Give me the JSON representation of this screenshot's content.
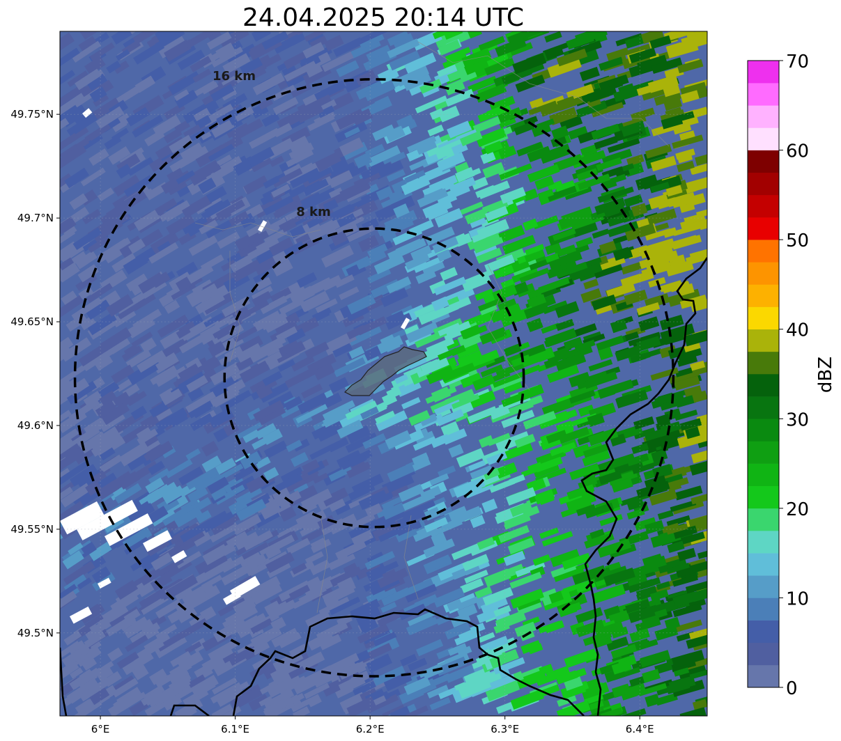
{
  "title": "24.04.2025 20:14 UTC",
  "map": {
    "lon_range": [
      5.97,
      6.45
    ],
    "lat_range": [
      49.46,
      49.79
    ],
    "x_ticks": [
      {
        "value": 6.0,
        "label": "6°E"
      },
      {
        "value": 6.1,
        "label": "6.1°E"
      },
      {
        "value": 6.2,
        "label": "6.2°E"
      },
      {
        "value": 6.3,
        "label": "6.3°E"
      },
      {
        "value": 6.4,
        "label": "6.4°E"
      }
    ],
    "y_ticks": [
      {
        "value": 49.75,
        "label": "49.75°N"
      },
      {
        "value": 49.7,
        "label": "49.7°N"
      },
      {
        "value": 49.65,
        "label": "49.65°N"
      },
      {
        "value": 49.6,
        "label": "49.6°N"
      },
      {
        "value": 49.55,
        "label": "49.55°N"
      },
      {
        "value": 49.5,
        "label": "49.5°N"
      }
    ],
    "center": {
      "lon": 6.203,
      "lat": 49.623
    },
    "range_rings": [
      {
        "radius_km": 8,
        "label": "8 km"
      },
      {
        "radius_km": 16,
        "label": "16 km"
      }
    ]
  },
  "colorbar": {
    "label": "dBZ",
    "min": 0,
    "max": 70,
    "tick_values": [
      0,
      10,
      20,
      30,
      40,
      50,
      60,
      70
    ],
    "tick_labels": [
      "0",
      "10",
      "20",
      "30",
      "40",
      "50",
      "60",
      "70"
    ],
    "colors": [
      "#6676ab",
      "#505fa0",
      "#445ea8",
      "#4b7fb8",
      "#569dc8",
      "#60bed9",
      "#5ed6c4",
      "#3ad66e",
      "#14c81b",
      "#10b414",
      "#0f9f12",
      "#0a8a10",
      "#087510",
      "#05620c",
      "#487a0a",
      "#aab30a",
      "#fbd800",
      "#fdb100",
      "#fd9400",
      "#ff7300",
      "#e80000",
      "#c40000",
      "#a20000",
      "#7e0000",
      "#ffe0ff",
      "#ffb2ff",
      "#ff6bff",
      "#ee30ee"
    ]
  }
}
